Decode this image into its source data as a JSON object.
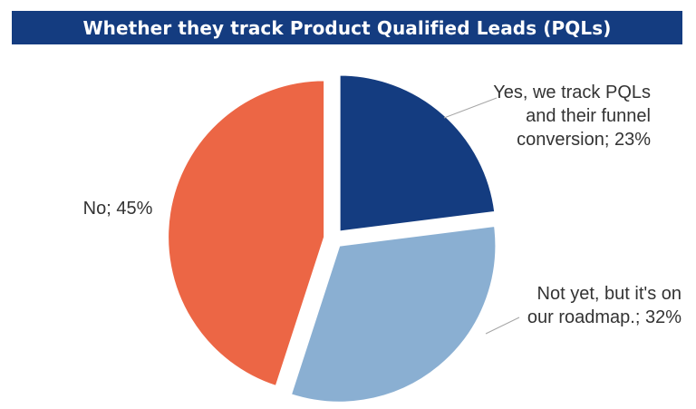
{
  "chart_data": {
    "type": "pie",
    "title": "Whether they track Product Qualified Leads (PQLs)",
    "slices": [
      {
        "label": "Yes, we track PQLs and their funnel conversion",
        "value": 23,
        "color": "#143c80",
        "label_text": [
          "Yes, we track PQLs",
          "and their funnel",
          "conversion; 23%"
        ]
      },
      {
        "label": "Not yet, but it's on our roadmap.",
        "value": 32,
        "color": "#8aafd2",
        "label_text": [
          "Not yet, but it's on",
          "our roadmap.; 32%"
        ]
      },
      {
        "label": "No",
        "value": 45,
        "color": "#ec6645",
        "label_text": [
          "No; 45%"
        ]
      }
    ],
    "start_angle_deg": 0,
    "exploded": true,
    "legend": "none"
  }
}
